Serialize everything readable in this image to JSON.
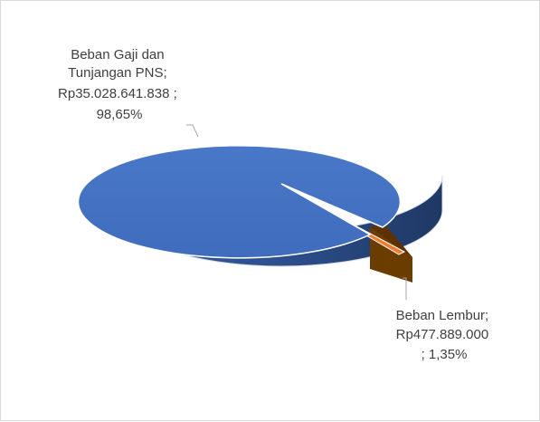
{
  "chart_data": {
    "type": "pie",
    "style": "3d",
    "title": "",
    "categories": [
      "Beban Gaji dan Tunjangan PNS",
      "Beban Lembur"
    ],
    "values": [
      35028641838,
      477889000
    ],
    "percentages": [
      98.65,
      1.35
    ],
    "colors": [
      "#4472c4",
      "#ed7d31"
    ],
    "legend": "none",
    "labels": [
      {
        "lines": [
          "Beban Gaji dan",
          "Tunjangan PNS;",
          "Rp35.028.641.838 ;",
          "98,65%"
        ]
      },
      {
        "lines": [
          "Beban Lembur;",
          "Rp477.889.000",
          "; 1,35%"
        ]
      }
    ]
  }
}
